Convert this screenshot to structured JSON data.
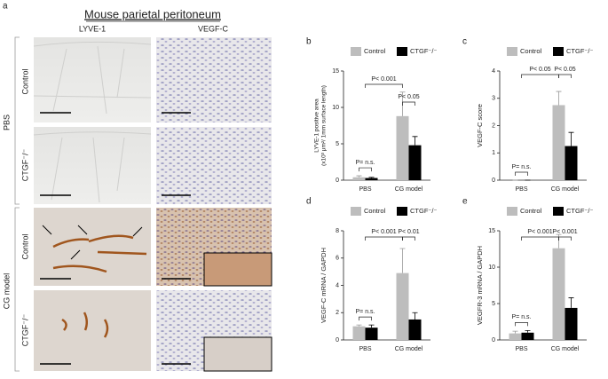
{
  "panel_a": {
    "label": "a",
    "title": "Mouse parietal peritoneum",
    "columns": [
      "LYVE-1",
      "VEGF-C"
    ],
    "groups": [
      "PBS",
      "CG model"
    ],
    "rows": [
      "Control",
      "CTGF⁻/⁻"
    ]
  },
  "chart_data": [
    {
      "type": "bar",
      "label": "b",
      "ylabel": [
        "LYVE-1 positive area",
        "(x10³ μm²/ 1mm surface length)"
      ],
      "categories": [
        "PBS",
        "CG model"
      ],
      "series": [
        {
          "name": "Control",
          "color": "#bdbdbd",
          "values": [
            0.4,
            8.8
          ],
          "errors": [
            0.2,
            3.3
          ]
        },
        {
          "name": "CTGF⁻/⁻",
          "color": "#000000",
          "values": [
            0.3,
            4.8
          ],
          "errors": [
            0.1,
            1.2
          ]
        }
      ],
      "ylim": [
        0,
        15
      ],
      "yticks": [
        0,
        5,
        10,
        15
      ],
      "annotations": [
        "P= n.s.",
        "P< 0.001",
        "P< 0.05"
      ]
    },
    {
      "type": "bar",
      "label": "c",
      "ylabel": "VEGF-C score",
      "categories": [
        "PBS",
        "CG model"
      ],
      "series": [
        {
          "name": "Control",
          "color": "#bdbdbd",
          "values": [
            0,
            2.75
          ],
          "errors": [
            0,
            0.5
          ]
        },
        {
          "name": "CTGF⁻/⁻",
          "color": "#000000",
          "values": [
            0,
            1.25
          ],
          "errors": [
            0,
            0.5
          ]
        }
      ],
      "ylim": [
        0,
        4
      ],
      "yticks": [
        0,
        1,
        2,
        3,
        4
      ],
      "annotations": [
        "P= n.s.",
        "P< 0.05",
        "P< 0.05"
      ]
    },
    {
      "type": "bar",
      "label": "d",
      "ylabel": "VEGF-C mRNA / GAPDH",
      "categories": [
        "PBS",
        "CG model"
      ],
      "series": [
        {
          "name": "Control",
          "color": "#bdbdbd",
          "values": [
            1.0,
            4.9
          ],
          "errors": [
            0.1,
            1.8
          ]
        },
        {
          "name": "CTGF⁻/⁻",
          "color": "#000000",
          "values": [
            0.9,
            1.5
          ],
          "errors": [
            0.2,
            0.5
          ]
        }
      ],
      "ylim": [
        0,
        8
      ],
      "yticks": [
        0,
        2,
        4,
        6,
        8
      ],
      "annotations": [
        "P= n.s.",
        "P< 0.001",
        "P< 0.01"
      ]
    },
    {
      "type": "bar",
      "label": "e",
      "ylabel": "VEGFR-3 mRNA / GAPDH",
      "categories": [
        "PBS",
        "CG model"
      ],
      "series": [
        {
          "name": "Control",
          "color": "#bdbdbd",
          "values": [
            0.9,
            12.6
          ],
          "errors": [
            0.3,
            1.9
          ]
        },
        {
          "name": "CTGF⁻/⁻",
          "color": "#000000",
          "values": [
            1.0,
            4.4
          ],
          "errors": [
            0.3,
            1.4
          ]
        }
      ],
      "ylim": [
        0,
        15
      ],
      "yticks": [
        0,
        5,
        10,
        15
      ],
      "annotations": [
        "P= n.s.",
        "P< 0.001",
        "P< 0.001"
      ]
    }
  ]
}
